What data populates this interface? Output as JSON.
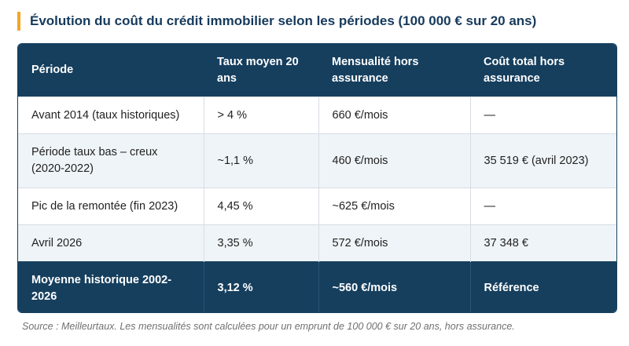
{
  "title": "Évolution du coût du crédit immobilier selon les périodes (100 000 € sur 20 ans)",
  "table": {
    "headers": [
      "Période",
      "Taux moyen 20 ans",
      "Mensualité hors assurance",
      "Coût total hors assurance"
    ],
    "rows": [
      [
        "Avant 2014 (taux historiques)",
        "> 4 %",
        "660 €/mois",
        "—"
      ],
      [
        "Période taux bas – creux (2020-2022)",
        "~1,1 %",
        "460 €/mois",
        "35 519 € (avril 2023)"
      ],
      [
        "Pic de la remontée (fin 2023)",
        "4,45 %",
        "~625 €/mois",
        "—"
      ],
      [
        "Avril 2026",
        "3,35 %",
        "572 €/mois",
        "37 348 €"
      ]
    ],
    "footer": [
      "Moyenne historique 2002-2026",
      "3,12 %",
      "~560 €/mois",
      "Référence"
    ]
  },
  "source": "Source : Meilleurtaux. Les mensualités sont calculées pour un emprunt de 100 000 € sur 20 ans, hors assurance.",
  "colors": {
    "accent": "#f5a623",
    "header_bg": "#163f5e",
    "title_text": "#163a5c",
    "row_tint": "#eef4f8"
  }
}
